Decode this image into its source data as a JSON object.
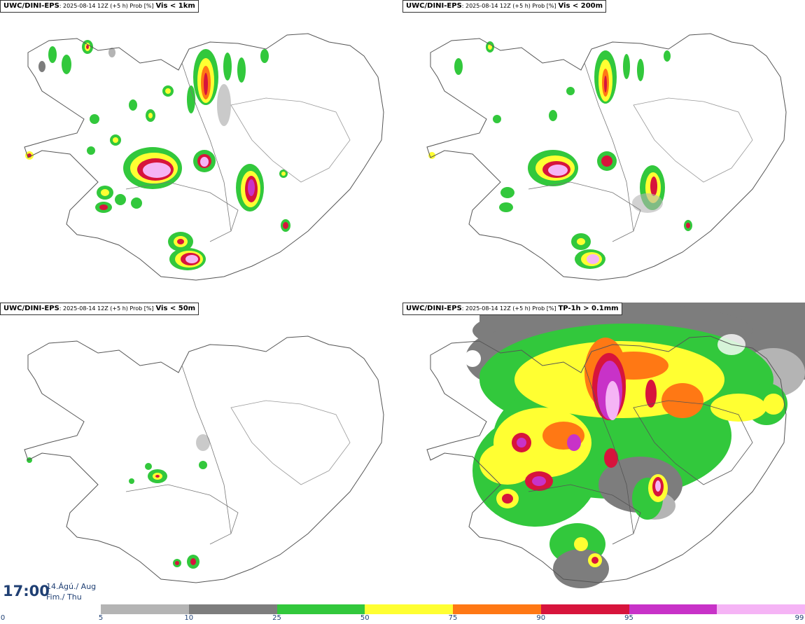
{
  "panels": [
    {
      "model": "UWC/DINI-EPS",
      "run": ": 2025-08-14 12Z (+5 h) Prob [%]",
      "param": "Vis < 1km"
    },
    {
      "model": "UWC/DINI-EPS",
      "run": ": 2025-08-14 12Z (+5 h) Prob [%]",
      "param": "Vis < 200m"
    },
    {
      "model": "UWC/DINI-EPS",
      "run": ": 2025-08-14 12Z (+5 h) Prob [%]",
      "param": "Vis < 50m"
    },
    {
      "model": "UWC/DINI-EPS",
      "run": ": 2025-08-14 12Z (+5 h) Prob [%]",
      "param": "TP-1h > 0.1mm"
    }
  ],
  "valid_time": {
    "time": "17:00",
    "date_line1": "14.Ágú./ Aug",
    "date_line2": "Fim./ Thu"
  },
  "legend": {
    "ticks": [
      "0",
      "5",
      "10",
      "25",
      "50",
      "75",
      "90",
      "95",
      "99"
    ],
    "colors": [
      "#b4b4b4",
      "#7d7d7d",
      "#32c83c",
      "#ffff32",
      "#ff7814",
      "#d7143c",
      "#c832c8",
      "#f5b4f5"
    ]
  },
  "colors": {
    "coast": "#555555",
    "text_time": "#1f3f73"
  }
}
